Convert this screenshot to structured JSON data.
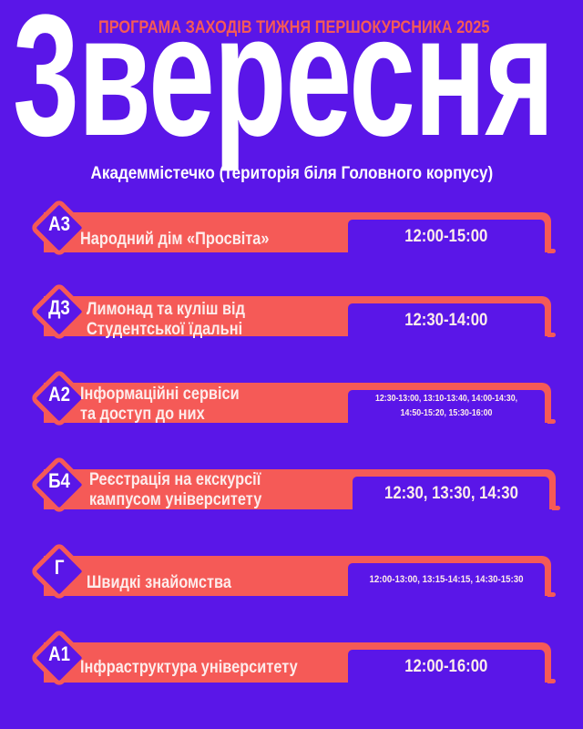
{
  "header": {
    "subtitle": "ПРОГРАМА ЗАХОДІВ ТИЖНЯ ПЕРШОКУРСНИКА 2025",
    "title": "3вересня",
    "location": "Академмістечко (територія біля Головного корпусу)"
  },
  "colors": {
    "background": "#5a16e8",
    "accent": "#f55a57",
    "text": "#fdeceb"
  },
  "events": [
    {
      "code": "А3",
      "lines": [
        "Народний дім «Просвіта»"
      ],
      "time": "12:00-15:00"
    },
    {
      "code": "Д3",
      "lines": [
        "Лимонад та куліш від",
        "Студентської їдальні"
      ],
      "time": "12:30-14:00"
    },
    {
      "code": "А2",
      "lines": [
        "Інформаційні сервіси",
        "та доступ до них"
      ],
      "time": "12:30-13:00, 13:10-13:40, 14:00-14:30, 14:50-15:20, 15:30-16:00"
    },
    {
      "code": "Б4",
      "lines": [
        "Реєстрація на екскурсії",
        "кампусом університету"
      ],
      "time": "12:30, 13:30, 14:30"
    },
    {
      "code": "Г",
      "lines": [
        "Швидкі знайомства"
      ],
      "time": "12:00-13:00, 13:15-14:15, 14:30-15:30"
    },
    {
      "code": "А1",
      "lines": [
        "Інфраструктура університету"
      ],
      "time": "12:00-16:00"
    }
  ]
}
